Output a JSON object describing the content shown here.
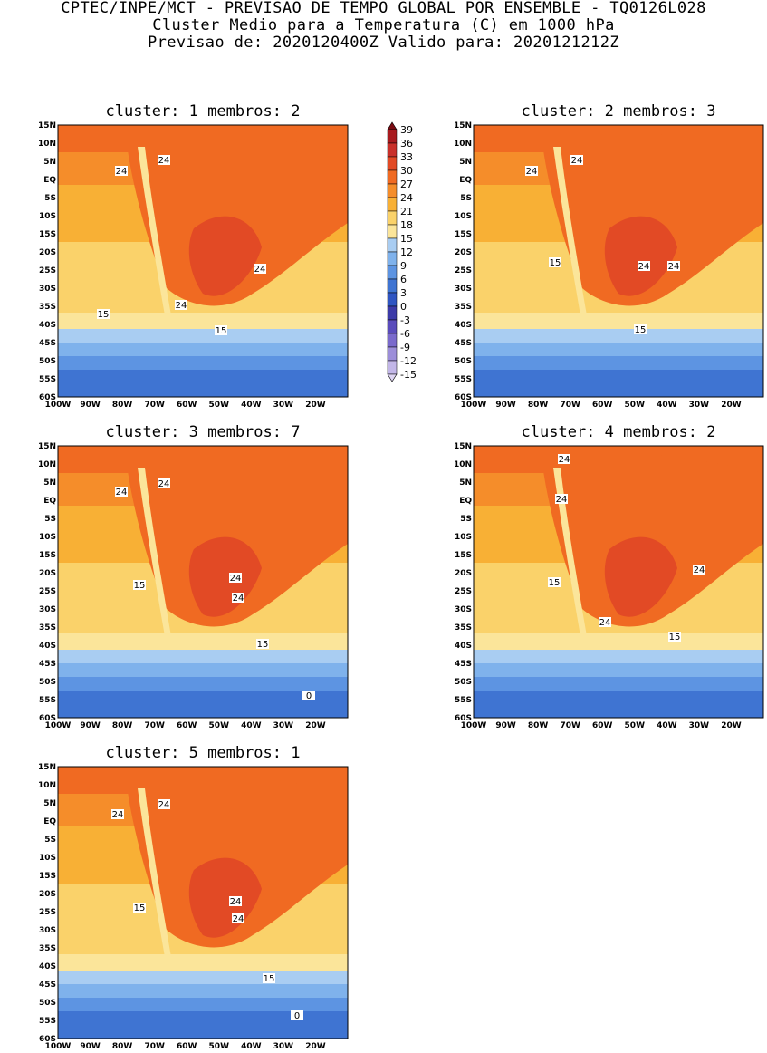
{
  "header": {
    "line1": "CPTEC/INPE/MCT - PREVISAO DE TEMPO GLOBAL POR ENSEMBLE - TQ0126L028",
    "line2": "Cluster Medio para a Temperatura (C) em 1000 hPa",
    "line3": "Previsao de: 2020120400Z   Valido para: 2020121212Z"
  },
  "panels": [
    {
      "title": "cluster: 1   membros: 2",
      "labels": [
        {
          "t": "24"
        },
        {
          "t": "24"
        },
        {
          "t": "24"
        },
        {
          "t": "24"
        },
        {
          "t": "15"
        },
        {
          "t": "15"
        }
      ]
    },
    {
      "title": "cluster: 2   membros: 3",
      "labels": [
        {
          "t": "24"
        },
        {
          "t": "24"
        },
        {
          "t": "24"
        },
        {
          "t": "24"
        },
        {
          "t": "15"
        },
        {
          "t": "15"
        }
      ]
    },
    {
      "title": "cluster: 3   membros: 7",
      "labels": [
        {
          "t": "24"
        },
        {
          "t": "24"
        },
        {
          "t": "24"
        },
        {
          "t": "24"
        },
        {
          "t": "15"
        },
        {
          "t": "15"
        },
        {
          "t": "0"
        }
      ]
    },
    {
      "title": "cluster: 4   membros: 2",
      "labels": [
        {
          "t": "24"
        },
        {
          "t": "24"
        },
        {
          "t": "24"
        },
        {
          "t": "24"
        },
        {
          "t": "15"
        },
        {
          "t": "15"
        }
      ]
    },
    {
      "title": "cluster: 5   membros: 1",
      "labels": [
        {
          "t": "24"
        },
        {
          "t": "24"
        },
        {
          "t": "24"
        },
        {
          "t": "24"
        },
        {
          "t": "15"
        },
        {
          "t": "15"
        },
        {
          "t": "0"
        }
      ]
    }
  ],
  "axes": {
    "lat_labels": [
      "15N",
      "10N",
      "5N",
      "EQ",
      "5S",
      "10S",
      "15S",
      "20S",
      "25S",
      "30S",
      "35S",
      "40S",
      "45S",
      "50S",
      "55S",
      "60S"
    ],
    "lon_labels": [
      "100W",
      "90W",
      "80W",
      "70W",
      "60W",
      "50W",
      "40W",
      "30W",
      "20W"
    ]
  },
  "colorbar": {
    "levels": [
      "39",
      "36",
      "33",
      "30",
      "27",
      "24",
      "21",
      "18",
      "15",
      "12",
      "9",
      "6",
      "3",
      "0",
      "-3",
      "-6",
      "-9",
      "-12",
      "-15"
    ],
    "colors": [
      "#7a0b12",
      "#a81a1e",
      "#c9302a",
      "#e24a25",
      "#f06a22",
      "#f58d2a",
      "#f8b035",
      "#fad26a",
      "#fbe59a",
      "#a9cdf2",
      "#7fb2ec",
      "#5d94e2",
      "#3f74d2",
      "#2f55c2",
      "#3c3aa8",
      "#5a4cbc",
      "#7a6acc",
      "#9c8ed9",
      "#c2b6e8",
      "#ddd4f2"
    ]
  }
}
